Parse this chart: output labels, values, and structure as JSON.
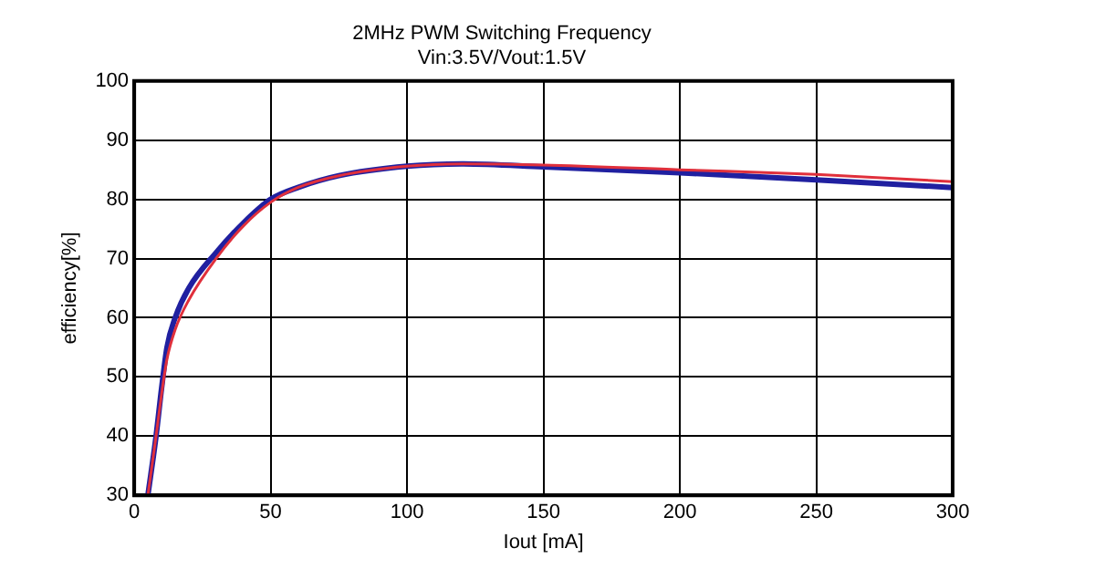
{
  "chart_data": {
    "type": "line",
    "title": "2MHz PWM Switching Frequency",
    "subtitle": "Vin:3.5V/Vout:1.5V",
    "xlabel": "Iout [mA]",
    "ylabel": "efficiency[%]",
    "x": [
      5,
      8,
      10,
      12,
      15,
      20,
      30,
      40,
      50,
      60,
      75,
      100,
      120,
      150,
      200,
      250,
      300
    ],
    "series": [
      {
        "color": "#e0303c",
        "values": [
          30,
          40,
          47,
          53,
          58,
          63,
          70,
          75.5,
          79.5,
          82,
          84,
          85.6,
          86,
          85.8,
          85,
          84.2,
          83
        ]
      },
      {
        "color": "#2020a0",
        "values": [
          30,
          40,
          48,
          55,
          60,
          65,
          71,
          76,
          80,
          82,
          84,
          85.6,
          86,
          85.5,
          84.5,
          83.3,
          82
        ]
      }
    ],
    "xlim": [
      0,
      300
    ],
    "xticks": [
      0,
      50,
      100,
      150,
      200,
      250,
      300
    ],
    "ylim": [
      30,
      100
    ],
    "yticks": [
      30,
      40,
      50,
      60,
      70,
      80,
      90,
      100
    ],
    "grid": true,
    "legend": false,
    "marker": "none",
    "line_style": "solid"
  }
}
